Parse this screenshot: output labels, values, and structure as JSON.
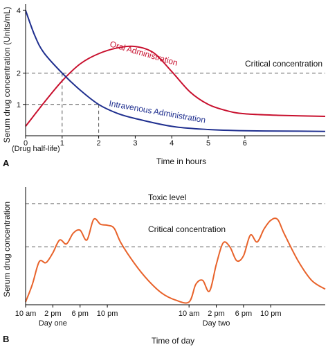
{
  "chart_data": [
    {
      "type": "line",
      "panel_label": "A",
      "xlabel": "Time in hours",
      "ylabel": "Serum drug concentration (Units/mL)",
      "xlim": [
        0,
        8.2
      ],
      "ylim": [
        0,
        4.2
      ],
      "x_ticks": [
        0,
        1,
        2,
        3,
        4,
        5,
        6
      ],
      "x_tick_labels": [
        "0",
        "1",
        "2",
        "3",
        "4",
        "5",
        "6"
      ],
      "y_ticks": [
        1,
        2,
        4
      ],
      "y_tick_labels": [
        "1",
        "2",
        "4"
      ],
      "x_note": "(Drug half-life)",
      "threshold": {
        "label": "Critical concentration",
        "y": 2
      },
      "guide_points": [
        {
          "x": 1,
          "y": 2
        },
        {
          "x": 2,
          "y": 1
        }
      ],
      "grid": false,
      "series": [
        {
          "name": "Oral Administration",
          "color": "#c8102e",
          "x": [
            0,
            0.5,
            1,
            1.5,
            2,
            2.5,
            3,
            3.5,
            4,
            4.5,
            5,
            5.5,
            6,
            7,
            8.2
          ],
          "y": [
            0.3,
            1.05,
            1.75,
            2.3,
            2.62,
            2.8,
            2.85,
            2.65,
            2.05,
            1.4,
            1.0,
            0.8,
            0.7,
            0.65,
            0.62
          ]
        },
        {
          "name": "Intravenous Administration",
          "color": "#1f2f8f",
          "x": [
            0,
            0.25,
            0.5,
            1,
            1.5,
            2,
            2.5,
            3,
            4,
            5,
            6,
            7,
            8.2
          ],
          "y": [
            4.0,
            3.2,
            2.65,
            2.0,
            1.45,
            1.0,
            0.72,
            0.55,
            0.3,
            0.2,
            0.16,
            0.15,
            0.14
          ]
        }
      ]
    },
    {
      "type": "line",
      "panel_label": "B",
      "xlabel": "Time of day",
      "ylabel": "Serum drug concentration",
      "x_tick_labels": [
        "10 am",
        "2 pm",
        "6 pm",
        "10 pm",
        "10 am",
        "2 pm",
        "6 pm",
        "10 pm"
      ],
      "x_tick_hours": [
        10,
        14,
        18,
        22,
        34,
        38,
        42,
        46
      ],
      "day_labels": [
        {
          "label": "Day one",
          "hour": 14
        },
        {
          "label": "Day two",
          "hour": 38
        }
      ],
      "xlim": [
        10,
        54
      ],
      "ylim": [
        0,
        100
      ],
      "thresholds": [
        {
          "label": "Toxic level",
          "y": 100
        },
        {
          "label": "Critical concentration",
          "y": 56
        }
      ],
      "grid": false,
      "series": [
        {
          "color": "#e8622a",
          "x": [
            10,
            11,
            12,
            13,
            14,
            15,
            16,
            17,
            18,
            19,
            20,
            21,
            22,
            23,
            24,
            26,
            28,
            30,
            32,
            34,
            35,
            36,
            37,
            38,
            39,
            40,
            41,
            42,
            43,
            44,
            45,
            46,
            47,
            48,
            50,
            52,
            54
          ],
          "y": [
            0,
            18,
            41,
            40,
            50,
            63,
            59,
            70,
            73,
            63,
            84,
            79,
            78,
            75,
            60,
            39,
            22,
            9,
            2,
            0,
            18,
            22,
            11,
            38,
            60,
            56,
            42,
            47,
            68,
            61,
            74,
            83,
            84,
            69,
            42,
            22,
            13
          ]
        }
      ]
    }
  ]
}
